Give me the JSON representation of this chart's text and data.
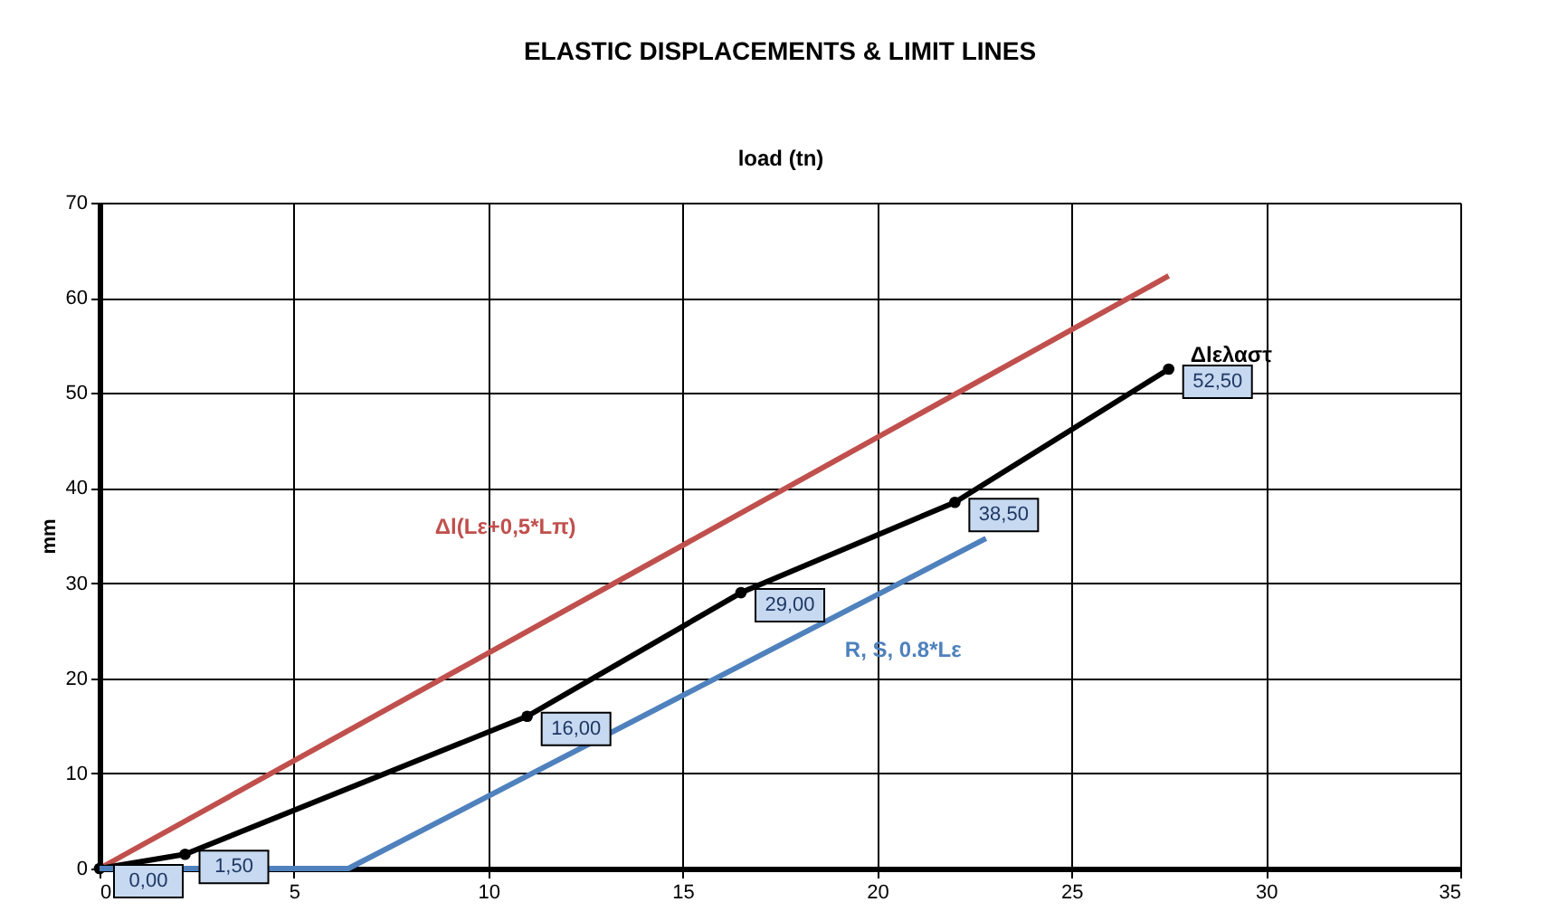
{
  "chart_data": {
    "type": "line",
    "title": "ELASTIC DISPLACEMENTS & LIMIT LINES",
    "xlabel": "load (tn)",
    "ylabel": "mm",
    "xlim": [
      0,
      35
    ],
    "xticks": [
      0,
      5,
      10,
      15,
      20,
      25,
      30,
      35
    ],
    "ylim": [
      0,
      70
    ],
    "yticks": [
      0,
      10,
      20,
      30,
      40,
      50,
      60,
      70
    ],
    "grid": true,
    "line_style": "solid",
    "series": [
      {
        "name": "Δl(Lε+0,5*Lπ)",
        "color": "#c0504d",
        "x": [
          0,
          27.5
        ],
        "values": [
          0,
          62.3
        ],
        "marker": "none"
      },
      {
        "name": "Δlελαστ",
        "color": "#000000",
        "x": [
          0,
          2.2,
          11,
          16.5,
          22,
          27.5
        ],
        "values": [
          0,
          1.5,
          16,
          29,
          38.5,
          52.5
        ],
        "marker": "circle",
        "value_labels": [
          "0,00",
          "1,50",
          "16,00",
          "29,00",
          "38,50",
          "52,50"
        ]
      },
      {
        "name": "R, S, 0.8*Lε",
        "color": "#4f81bd",
        "x": [
          0,
          6.4,
          22.8
        ],
        "values": [
          0,
          0,
          34.7
        ],
        "marker": "none"
      }
    ]
  }
}
